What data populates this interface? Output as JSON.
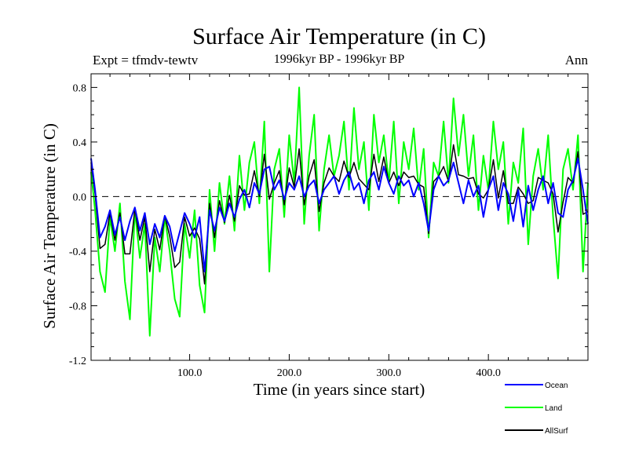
{
  "chart_data": {
    "type": "line",
    "title": "Surface Air Temperature (in C)",
    "subtitle": "1996kyr BP - 1996kyr BP",
    "left_label": "Expt = tfmdv-tewtv",
    "right_label": "Ann",
    "xlabel": "Time (in years since start)",
    "ylabel": "Surface Air Temperature (in C)",
    "xlim": [
      1,
      500
    ],
    "ylim": [
      -1.2,
      0.9
    ],
    "x_ticks": [
      100,
      200,
      300,
      400
    ],
    "x_tick_labels": [
      "100.0",
      "200.0",
      "300.0",
      "400.0"
    ],
    "y_ticks": [
      -1.2,
      -0.8,
      -0.4,
      0.0,
      0.4,
      0.8
    ],
    "y_tick_labels": [
      "-1.2",
      "-0.8",
      "-0.4",
      "0.0",
      "0.4",
      "0.8"
    ],
    "reference_line": 0.0,
    "legend_position": "bottom-right",
    "series": [
      {
        "name": "Ocean",
        "color": "#0000ff",
        "x": [
          1,
          5,
          10,
          15,
          20,
          25,
          30,
          35,
          40,
          45,
          50,
          55,
          60,
          65,
          70,
          75,
          80,
          85,
          90,
          95,
          100,
          105,
          110,
          115,
          120,
          125,
          130,
          135,
          140,
          145,
          150,
          155,
          160,
          165,
          170,
          175,
          180,
          185,
          190,
          195,
          200,
          205,
          210,
          215,
          220,
          225,
          230,
          235,
          240,
          245,
          250,
          255,
          260,
          265,
          270,
          275,
          280,
          285,
          290,
          295,
          300,
          305,
          310,
          315,
          320,
          325,
          330,
          335,
          340,
          345,
          350,
          355,
          360,
          365,
          370,
          375,
          380,
          385,
          390,
          395,
          400,
          405,
          410,
          415,
          420,
          425,
          430,
          435,
          440,
          445,
          450,
          455,
          460,
          465,
          470,
          475,
          480,
          485,
          490,
          495,
          500
        ],
        "values": [
          0.28,
          0.05,
          -0.3,
          -0.22,
          -0.1,
          -0.28,
          -0.15,
          -0.32,
          -0.18,
          -0.08,
          -0.25,
          -0.12,
          -0.35,
          -0.2,
          -0.3,
          -0.14,
          -0.22,
          -0.4,
          -0.26,
          -0.12,
          -0.2,
          -0.3,
          -0.15,
          -0.55,
          -0.1,
          -0.25,
          -0.08,
          -0.18,
          -0.05,
          -0.15,
          -0.02,
          0.05,
          -0.08,
          0.1,
          0.02,
          0.2,
          0.22,
          0.05,
          0.12,
          -0.02,
          0.1,
          0.05,
          0.15,
          0.0,
          0.08,
          0.12,
          -0.05,
          0.05,
          0.1,
          0.15,
          0.02,
          0.12,
          0.18,
          0.05,
          0.1,
          -0.05,
          0.12,
          0.18,
          0.05,
          0.22,
          0.1,
          0.02,
          0.15,
          0.08,
          0.12,
          0.0,
          0.1,
          -0.05,
          -0.25,
          0.05,
          0.15,
          0.08,
          0.12,
          0.25,
          0.1,
          -0.05,
          0.12,
          0.0,
          0.08,
          -0.15,
          0.05,
          0.15,
          -0.1,
          0.1,
          0.02,
          -0.18,
          0.05,
          -0.22,
          0.08,
          -0.1,
          0.05,
          0.15,
          -0.05,
          0.1,
          -0.12,
          -0.15,
          0.05,
          0.12,
          0.28,
          0.05,
          -0.2
        ]
      },
      {
        "name": "Land",
        "color": "#00ff00",
        "x": [
          1,
          5,
          10,
          15,
          20,
          25,
          30,
          35,
          40,
          45,
          50,
          55,
          60,
          65,
          70,
          75,
          80,
          85,
          90,
          95,
          100,
          105,
          110,
          115,
          120,
          125,
          130,
          135,
          140,
          145,
          150,
          155,
          160,
          165,
          170,
          175,
          180,
          185,
          190,
          195,
          200,
          205,
          210,
          215,
          220,
          225,
          230,
          235,
          240,
          245,
          250,
          255,
          260,
          265,
          270,
          275,
          280,
          285,
          290,
          295,
          300,
          305,
          310,
          315,
          320,
          325,
          330,
          335,
          340,
          345,
          350,
          355,
          360,
          365,
          370,
          375,
          380,
          385,
          390,
          395,
          400,
          405,
          410,
          415,
          420,
          425,
          430,
          435,
          440,
          445,
          450,
          455,
          460,
          465,
          470,
          475,
          480,
          485,
          490,
          495,
          500
        ],
        "values": [
          0.18,
          -0.1,
          -0.55,
          -0.7,
          -0.15,
          -0.4,
          -0.05,
          -0.62,
          -0.9,
          -0.1,
          -0.45,
          -0.2,
          -1.02,
          -0.3,
          -0.55,
          -0.15,
          -0.4,
          -0.75,
          -0.88,
          -0.2,
          -0.45,
          -0.1,
          -0.65,
          -0.85,
          0.05,
          -0.4,
          0.1,
          -0.2,
          0.15,
          -0.25,
          0.3,
          -0.1,
          0.25,
          0.4,
          -0.05,
          0.55,
          -0.55,
          0.2,
          0.35,
          -0.15,
          0.45,
          0.1,
          0.8,
          -0.2,
          0.3,
          0.6,
          -0.25,
          0.2,
          0.45,
          0.15,
          0.3,
          0.55,
          0.05,
          0.65,
          0.2,
          0.4,
          -0.1,
          0.6,
          0.25,
          0.45,
          0.1,
          0.55,
          -0.05,
          0.4,
          0.2,
          0.5,
          0.05,
          0.35,
          -0.3,
          0.25,
          0.15,
          0.55,
          0.1,
          0.72,
          0.3,
          0.6,
          0.15,
          0.45,
          -0.1,
          0.3,
          0.05,
          0.55,
          0.2,
          0.4,
          -0.2,
          0.25,
          0.1,
          0.5,
          -0.35,
          0.15,
          0.35,
          0.05,
          0.45,
          -0.15,
          -0.6,
          0.2,
          0.35,
          0.05,
          0.45,
          -0.55,
          0.1
        ]
      },
      {
        "name": "AllSurf",
        "color": "#000000",
        "x": [
          1,
          5,
          10,
          15,
          20,
          25,
          30,
          35,
          40,
          45,
          50,
          55,
          60,
          65,
          70,
          75,
          80,
          85,
          90,
          95,
          100,
          105,
          110,
          115,
          120,
          125,
          130,
          135,
          140,
          145,
          150,
          155,
          160,
          165,
          170,
          175,
          180,
          185,
          190,
          195,
          200,
          205,
          210,
          215,
          220,
          225,
          230,
          235,
          240,
          245,
          250,
          255,
          260,
          265,
          270,
          275,
          280,
          285,
          290,
          295,
          300,
          305,
          310,
          315,
          320,
          325,
          330,
          335,
          340,
          345,
          350,
          355,
          360,
          365,
          370,
          375,
          380,
          385,
          390,
          395,
          400,
          405,
          410,
          415,
          420,
          425,
          430,
          435,
          440,
          445,
          450,
          455,
          460,
          465,
          470,
          475,
          480,
          485,
          490,
          495,
          500
        ],
        "values": [
          0.25,
          0.02,
          -0.38,
          -0.35,
          -0.12,
          -0.32,
          -0.12,
          -0.42,
          -0.42,
          -0.09,
          -0.32,
          -0.15,
          -0.55,
          -0.24,
          -0.39,
          -0.14,
          -0.29,
          -0.52,
          -0.48,
          -0.15,
          -0.29,
          -0.23,
          -0.31,
          -0.64,
          -0.05,
          -0.3,
          -0.03,
          -0.19,
          0.01,
          -0.18,
          0.08,
          0.01,
          0.02,
          0.19,
          0.0,
          0.31,
          -0.02,
          0.1,
          0.19,
          -0.06,
          0.21,
          0.07,
          0.35,
          -0.06,
          0.15,
          0.27,
          -0.11,
          0.1,
          0.21,
          0.15,
          0.11,
          0.26,
          0.14,
          0.25,
          0.13,
          0.09,
          0.05,
          0.31,
          0.11,
          0.29,
          0.1,
          0.18,
          0.08,
          0.18,
          0.14,
          0.15,
          0.09,
          0.07,
          -0.27,
          0.11,
          0.15,
          0.22,
          0.11,
          0.38,
          0.16,
          0.15,
          0.13,
          0.14,
          0.02,
          -0.01,
          0.05,
          0.27,
          -0.01,
          0.19,
          -0.05,
          -0.05,
          0.07,
          0.02,
          -0.05,
          -0.03,
          0.14,
          0.12,
          0.1,
          0.02,
          -0.26,
          -0.04,
          0.14,
          0.1,
          0.33,
          -0.13,
          -0.11
        ]
      }
    ]
  }
}
